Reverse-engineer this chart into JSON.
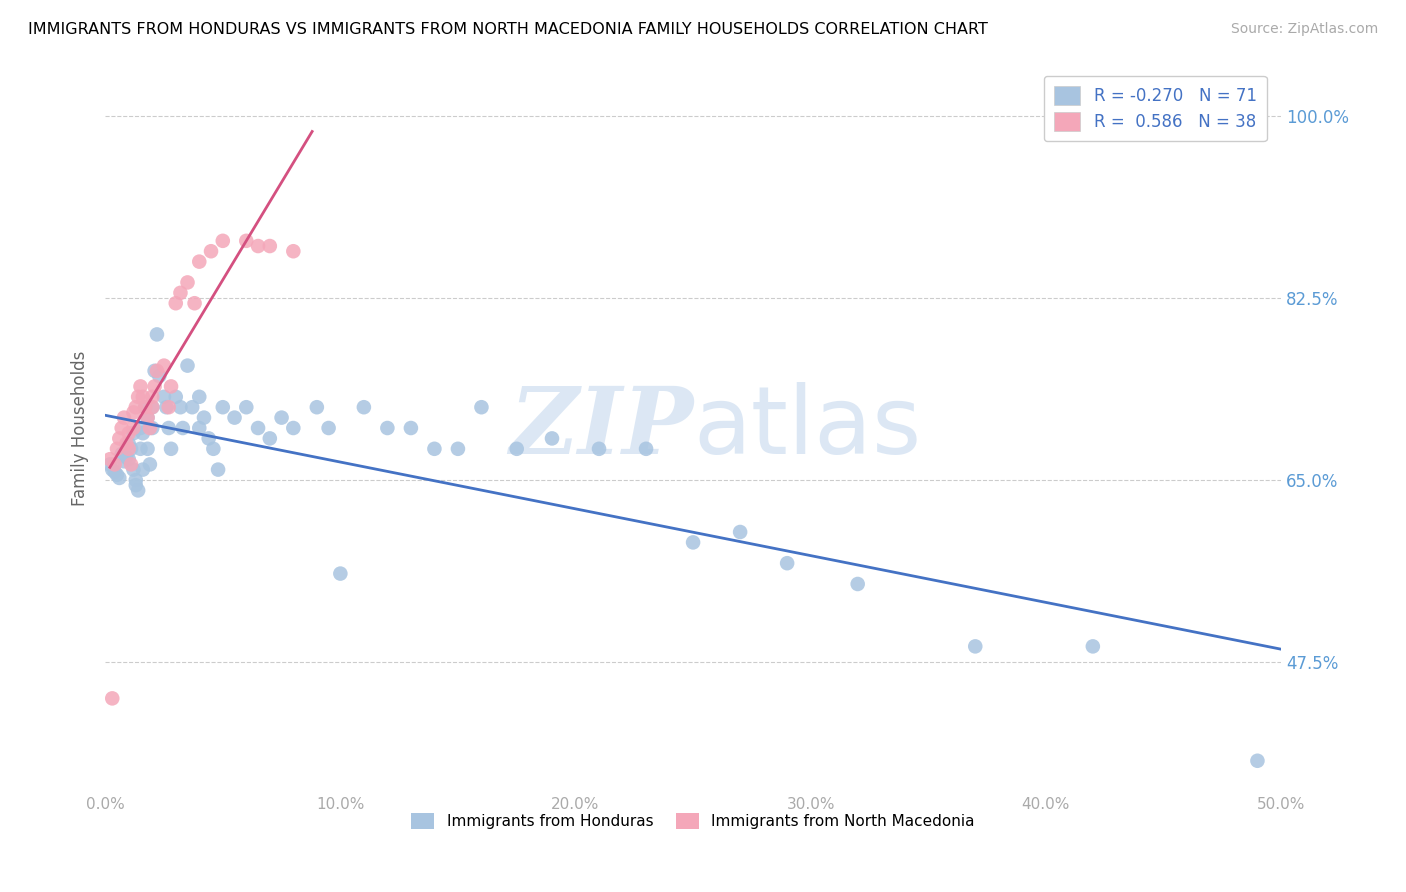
{
  "title": "IMMIGRANTS FROM HONDURAS VS IMMIGRANTS FROM NORTH MACEDONIA FAMILY HOUSEHOLDS CORRELATION CHART",
  "source": "Source: ZipAtlas.com",
  "ylabel": "Family Households",
  "ytick_labels": [
    "100.0%",
    "82.5%",
    "65.0%",
    "47.5%"
  ],
  "ytick_values": [
    1.0,
    0.825,
    0.65,
    0.475
  ],
  "xtick_positions": [
    0.0,
    0.1,
    0.2,
    0.3,
    0.4,
    0.5
  ],
  "xtick_labels": [
    "0.0%",
    "10.0%",
    "20.0%",
    "30.0%",
    "40.0%",
    "50.0%"
  ],
  "xmin": 0.0,
  "xmax": 0.5,
  "ymin": 0.35,
  "ymax": 1.05,
  "legend_r1": "R = -0.270",
  "legend_n1": "N = 71",
  "legend_r2": "R =  0.586",
  "legend_n2": "N = 38",
  "color_honduras": "#a8c4e0",
  "color_macedonia": "#f4a7b9",
  "color_line_honduras": "#4472c4",
  "color_line_macedonia": "#d45080",
  "watermark_zip": "ZIP",
  "watermark_atlas": "atlas",
  "legend_label_honduras": "Immigrants from Honduras",
  "legend_label_macedonia": "Immigrants from North Macedonia",
  "honduras_x": [
    0.002,
    0.003,
    0.004,
    0.005,
    0.006,
    0.007,
    0.008,
    0.009,
    0.01,
    0.01,
    0.011,
    0.012,
    0.012,
    0.013,
    0.013,
    0.014,
    0.015,
    0.015,
    0.016,
    0.016,
    0.017,
    0.018,
    0.018,
    0.019,
    0.02,
    0.02,
    0.021,
    0.022,
    0.023,
    0.025,
    0.026,
    0.027,
    0.028,
    0.03,
    0.032,
    0.033,
    0.035,
    0.037,
    0.04,
    0.04,
    0.042,
    0.044,
    0.046,
    0.048,
    0.05,
    0.055,
    0.06,
    0.065,
    0.07,
    0.075,
    0.08,
    0.09,
    0.095,
    0.1,
    0.11,
    0.12,
    0.13,
    0.14,
    0.15,
    0.16,
    0.175,
    0.19,
    0.21,
    0.23,
    0.25,
    0.27,
    0.29,
    0.32,
    0.37,
    0.42,
    0.49
  ],
  "honduras_y": [
    0.665,
    0.66,
    0.658,
    0.655,
    0.652,
    0.675,
    0.668,
    0.672,
    0.685,
    0.67,
    0.68,
    0.695,
    0.66,
    0.65,
    0.645,
    0.64,
    0.68,
    0.7,
    0.695,
    0.66,
    0.72,
    0.71,
    0.68,
    0.665,
    0.72,
    0.7,
    0.755,
    0.79,
    0.75,
    0.73,
    0.72,
    0.7,
    0.68,
    0.73,
    0.72,
    0.7,
    0.76,
    0.72,
    0.73,
    0.7,
    0.71,
    0.69,
    0.68,
    0.66,
    0.72,
    0.71,
    0.72,
    0.7,
    0.69,
    0.71,
    0.7,
    0.72,
    0.7,
    0.56,
    0.72,
    0.7,
    0.7,
    0.68,
    0.68,
    0.72,
    0.68,
    0.69,
    0.68,
    0.68,
    0.59,
    0.6,
    0.57,
    0.55,
    0.49,
    0.49,
    0.38
  ],
  "macedonia_x": [
    0.002,
    0.004,
    0.005,
    0.006,
    0.007,
    0.008,
    0.009,
    0.01,
    0.01,
    0.011,
    0.012,
    0.012,
    0.013,
    0.014,
    0.015,
    0.016,
    0.017,
    0.018,
    0.019,
    0.02,
    0.02,
    0.021,
    0.022,
    0.025,
    0.027,
    0.028,
    0.03,
    0.032,
    0.035,
    0.038,
    0.04,
    0.045,
    0.05,
    0.06,
    0.065,
    0.07,
    0.08,
    0.003
  ],
  "macedonia_y": [
    0.67,
    0.665,
    0.68,
    0.69,
    0.7,
    0.71,
    0.685,
    0.68,
    0.695,
    0.665,
    0.7,
    0.715,
    0.72,
    0.73,
    0.74,
    0.73,
    0.72,
    0.71,
    0.7,
    0.73,
    0.72,
    0.74,
    0.755,
    0.76,
    0.72,
    0.74,
    0.82,
    0.83,
    0.84,
    0.82,
    0.86,
    0.87,
    0.88,
    0.88,
    0.875,
    0.875,
    0.87,
    0.44
  ]
}
